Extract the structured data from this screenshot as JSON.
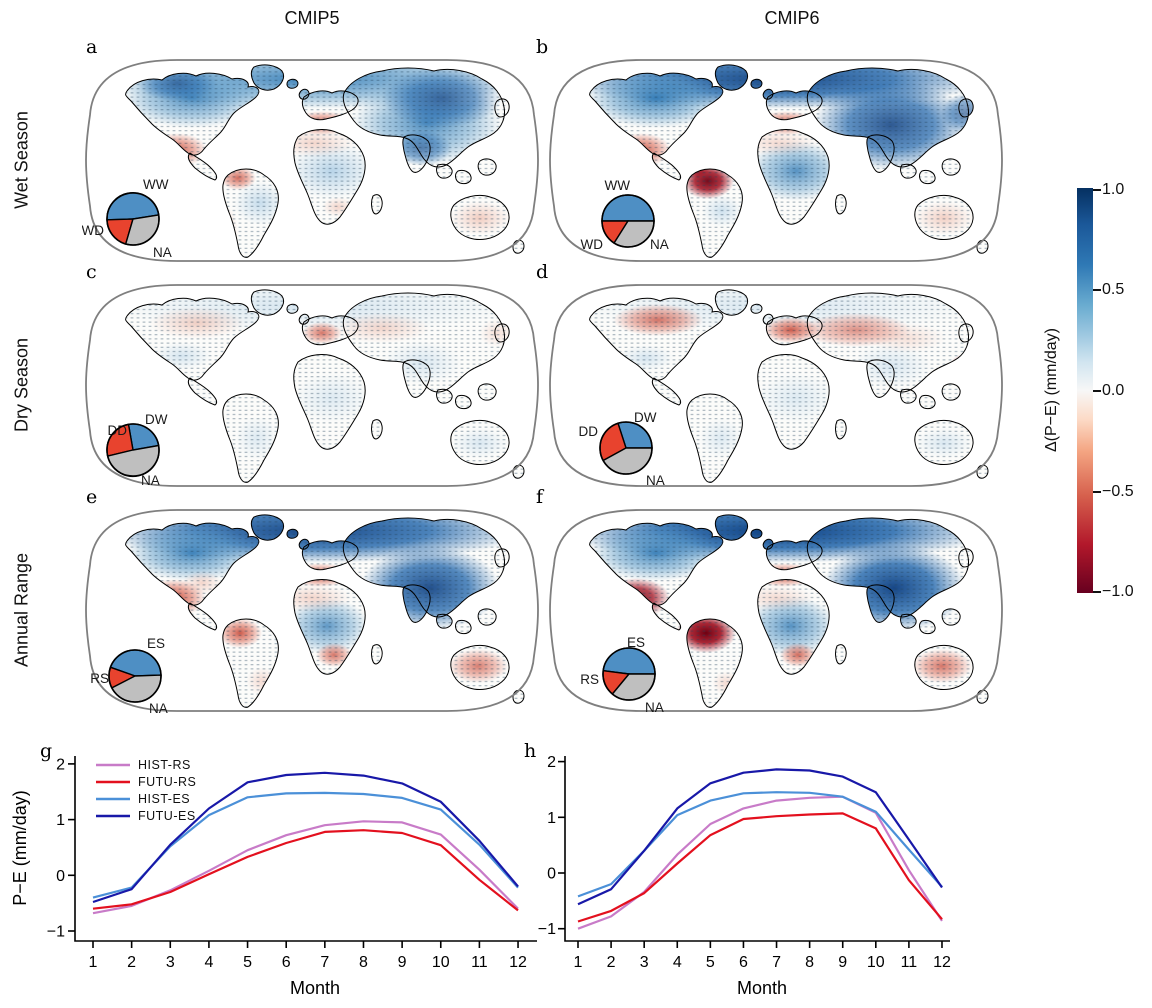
{
  "figure": {
    "column_titles": [
      "CMIP5",
      "CMIP6"
    ],
    "row_labels": [
      "Wet Season",
      "Dry Season",
      "Annual Range"
    ],
    "panel_letters": {
      "a": "a",
      "b": "b",
      "c": "c",
      "d": "d",
      "e": "e",
      "f": "f",
      "g": "g",
      "h": "h"
    }
  },
  "colorbar": {
    "label": "Δ(P−E) (mm/day)",
    "ticks": [
      "1.0",
      "0.5",
      "0.0",
      "−0.5",
      "−1.0"
    ],
    "values": [
      1.0,
      0.5,
      0.0,
      -0.5,
      -1.0
    ],
    "gradient_top": "#053061",
    "gradient_mid": "#F7F7F7",
    "gradient_bottom": "#67001F"
  },
  "chart_data": [
    {
      "type": "pie",
      "panel": "a",
      "row": "Wet Season",
      "model": "CMIP5",
      "start_deg": 9,
      "slices": [
        {
          "label": "WW",
          "fraction": 0.48,
          "color": "#4E8FC4"
        },
        {
          "label": "WD",
          "fraction": 0.2,
          "color": "#E8432E"
        },
        {
          "label": "NA",
          "fraction": 0.32,
          "color": "#BFBFBF"
        }
      ]
    },
    {
      "type": "pie",
      "panel": "b",
      "row": "Wet Season",
      "model": "CMIP6",
      "start_deg": 0,
      "slices": [
        {
          "label": "WW",
          "fraction": 0.5,
          "color": "#4E8FC4"
        },
        {
          "label": "WD",
          "fraction": 0.16,
          "color": "#E8432E"
        },
        {
          "label": "NA",
          "fraction": 0.34,
          "color": "#BFBFBF"
        }
      ]
    },
    {
      "type": "pie",
      "panel": "c",
      "row": "Dry Season",
      "model": "CMIP5",
      "start_deg": 10,
      "slices": [
        {
          "label": "DW",
          "fraction": 0.25,
          "color": "#4E8FC4"
        },
        {
          "label": "DD",
          "fraction": 0.26,
          "color": "#E8432E"
        },
        {
          "label": "NA",
          "fraction": 0.49,
          "color": "#BFBFBF"
        }
      ]
    },
    {
      "type": "pie",
      "panel": "d",
      "row": "Dry Season",
      "model": "CMIP6",
      "start_deg": 0,
      "slices": [
        {
          "label": "DW",
          "fraction": 0.3,
          "color": "#4E8FC4"
        },
        {
          "label": "DD",
          "fraction": 0.28,
          "color": "#E8432E"
        },
        {
          "label": "NA",
          "fraction": 0.42,
          "color": "#BFBFBF"
        }
      ]
    },
    {
      "type": "pie",
      "panel": "e",
      "row": "Annual Range",
      "model": "CMIP5",
      "start_deg": 2,
      "slices": [
        {
          "label": "ES",
          "fraction": 0.44,
          "color": "#4E8FC4"
        },
        {
          "label": "RS",
          "fraction": 0.13,
          "color": "#E8432E"
        },
        {
          "label": "NA",
          "fraction": 0.43,
          "color": "#BFBFBF"
        }
      ]
    },
    {
      "type": "pie",
      "panel": "f",
      "row": "Annual Range",
      "model": "CMIP6",
      "start_deg": 0,
      "slices": [
        {
          "label": "ES",
          "fraction": 0.48,
          "color": "#4E8FC4"
        },
        {
          "label": "RS",
          "fraction": 0.16,
          "color": "#E8432E"
        },
        {
          "label": "NA",
          "fraction": 0.36,
          "color": "#BFBFBF"
        }
      ]
    },
    {
      "type": "line",
      "panel": "g",
      "model": "CMIP5",
      "xlabel": "Month",
      "ylabel": "P−E (mm/day)",
      "x": [
        1,
        2,
        3,
        4,
        5,
        6,
        7,
        8,
        9,
        10,
        11,
        12
      ],
      "xlim": [
        1,
        12
      ],
      "ylim": [
        -1,
        2
      ],
      "yticks": [
        -1,
        0,
        1,
        2
      ],
      "legend_position": "top-left",
      "grid": false,
      "series": [
        {
          "name": "HIST-RS",
          "color": "#C87BC8",
          "values": [
            -0.68,
            -0.55,
            -0.27,
            0.08,
            0.45,
            0.72,
            0.9,
            0.97,
            0.95,
            0.73,
            0.1,
            -0.6
          ]
        },
        {
          "name": "FUTU-RS",
          "color": "#E3101E",
          "values": [
            -0.6,
            -0.52,
            -0.3,
            0.02,
            0.33,
            0.58,
            0.78,
            0.81,
            0.76,
            0.54,
            -0.08,
            -0.63
          ]
        },
        {
          "name": "HIST-ES",
          "color": "#4B90D8",
          "values": [
            -0.4,
            -0.22,
            0.52,
            1.08,
            1.4,
            1.47,
            1.48,
            1.46,
            1.39,
            1.18,
            0.55,
            -0.22
          ]
        },
        {
          "name": "FUTU-ES",
          "color": "#1818A8",
          "values": [
            -0.48,
            -0.25,
            0.55,
            1.2,
            1.67,
            1.8,
            1.84,
            1.79,
            1.65,
            1.32,
            0.62,
            -0.2
          ]
        }
      ]
    },
    {
      "type": "line",
      "panel": "h",
      "model": "CMIP6",
      "xlabel": "Month",
      "ylabel": "",
      "x": [
        1,
        2,
        3,
        4,
        5,
        6,
        7,
        8,
        9,
        10,
        11,
        12
      ],
      "xlim": [
        1,
        12
      ],
      "ylim": [
        -1,
        2
      ],
      "yticks": [
        -1,
        0,
        1,
        2
      ],
      "legend_position": "none",
      "grid": false,
      "series": [
        {
          "name": "HIST-RS",
          "color": "#C87BC8",
          "values": [
            -1.0,
            -0.78,
            -0.34,
            0.33,
            0.88,
            1.16,
            1.3,
            1.35,
            1.37,
            1.08,
            0.05,
            -0.86
          ]
        },
        {
          "name": "FUTU-RS",
          "color": "#E3101E",
          "values": [
            -0.87,
            -0.68,
            -0.36,
            0.17,
            0.68,
            0.97,
            1.02,
            1.05,
            1.07,
            0.8,
            -0.13,
            -0.83
          ]
        },
        {
          "name": "HIST-ES",
          "color": "#4B90D8",
          "values": [
            -0.42,
            -0.2,
            0.4,
            1.04,
            1.3,
            1.43,
            1.45,
            1.44,
            1.37,
            1.1,
            0.42,
            -0.25
          ]
        },
        {
          "name": "FUTU-ES",
          "color": "#1818A8",
          "values": [
            -0.56,
            -0.29,
            0.4,
            1.16,
            1.61,
            1.8,
            1.86,
            1.84,
            1.73,
            1.45,
            0.6,
            -0.26
          ]
        }
      ]
    }
  ]
}
